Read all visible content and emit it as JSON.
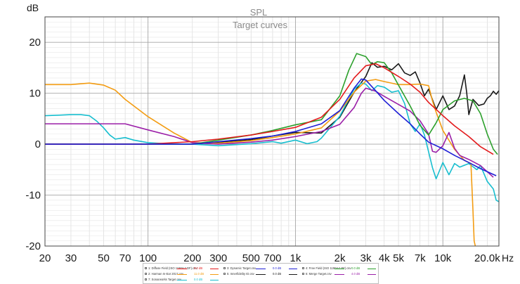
{
  "chart_data": {
    "type": "line",
    "title": "SPL",
    "subtitle": "Target curves",
    "ylabel": "dB",
    "xlabel": "Hz",
    "xscale": "log",
    "xlim": [
      20,
      24000
    ],
    "ylim": [
      -20,
      25
    ],
    "yticks": [
      -20,
      -10,
      0,
      10,
      20
    ],
    "ytick_labels": [
      "-20",
      "-10",
      "0",
      "10",
      "20"
    ],
    "xticks": [
      20,
      30,
      50,
      70,
      100,
      200,
      300,
      500,
      700,
      1000,
      2000,
      3000,
      4000,
      5000,
      7000,
      10000,
      20000
    ],
    "xtick_labels": [
      "20",
      "30",
      "50",
      "70",
      "100",
      "200",
      "300",
      "500",
      "700",
      "1k",
      "2k",
      "3k",
      "4k",
      "5k",
      "7k",
      "10k",
      "20.0k"
    ],
    "grid": true,
    "series": [
      {
        "name": "Diffuse Field (ISO 11904-2 DF).csv",
        "color": "#e31a1c",
        "offset": "0.0 dB",
        "points": [
          [
            20,
            0
          ],
          [
            100,
            0
          ],
          [
            200,
            0.5
          ],
          [
            300,
            1.0
          ],
          [
            500,
            1.8
          ],
          [
            700,
            2.5
          ],
          [
            1000,
            3.3
          ],
          [
            1500,
            5.3
          ],
          [
            2000,
            8.8
          ],
          [
            2500,
            13.0
          ],
          [
            3000,
            15.4
          ],
          [
            3500,
            15.8
          ],
          [
            4000,
            15.0
          ],
          [
            5000,
            13.3
          ],
          [
            6000,
            11.8
          ],
          [
            7000,
            10.2
          ],
          [
            8000,
            8.2
          ],
          [
            10000,
            5.6
          ],
          [
            12000,
            3.6
          ],
          [
            15000,
            1.5
          ],
          [
            18000,
            -0.5
          ],
          [
            22000,
            -2.0
          ]
        ]
      },
      {
        "name": "Harman In-Ear 2017.csv",
        "color": "#f39c12",
        "offset": "11.0 dB",
        "points": [
          [
            20,
            11.7
          ],
          [
            30,
            11.7
          ],
          [
            40,
            12.0
          ],
          [
            50,
            11.6
          ],
          [
            60,
            10.6
          ],
          [
            70,
            8.8
          ],
          [
            100,
            5.4
          ],
          [
            150,
            2.2
          ],
          [
            200,
            0.3
          ],
          [
            300,
            0.2
          ],
          [
            500,
            0.7
          ],
          [
            700,
            1.3
          ],
          [
            1000,
            2.0
          ],
          [
            1500,
            3.2
          ],
          [
            2000,
            6.5
          ],
          [
            2500,
            10.2
          ],
          [
            3000,
            12.4
          ],
          [
            3500,
            12.7
          ],
          [
            4000,
            12.3
          ],
          [
            5000,
            11.7
          ],
          [
            6000,
            11.7
          ],
          [
            7000,
            11.8
          ],
          [
            8000,
            11.5
          ],
          [
            8500,
            8.5
          ],
          [
            9000,
            6.3
          ],
          [
            10000,
            2.7
          ],
          [
            12000,
            -1.0
          ],
          [
            14000,
            -3.2
          ],
          [
            15500,
            -3.8
          ],
          [
            16000,
            -13.0
          ],
          [
            16300,
            -19.0
          ],
          [
            16600,
            -20
          ]
        ]
      },
      {
        "name": "Dynamic Target.csv",
        "color": "#1f1fd6",
        "offset": "0.0 dB",
        "points": [
          [
            20,
            0
          ],
          [
            200,
            0
          ],
          [
            300,
            0.5
          ],
          [
            500,
            1.1
          ],
          [
            700,
            1.6
          ],
          [
            1000,
            2.5
          ],
          [
            1500,
            4.0
          ],
          [
            2000,
            6.6
          ],
          [
            2500,
            11.0
          ],
          [
            2800,
            12.8
          ],
          [
            3000,
            12.6
          ],
          [
            3500,
            10.5
          ],
          [
            4000,
            8.6
          ],
          [
            5000,
            6.0
          ],
          [
            6000,
            4.0
          ],
          [
            7000,
            2.0
          ],
          [
            8000,
            0.4
          ],
          [
            10000,
            -0.9
          ],
          [
            12000,
            -2.2
          ],
          [
            15000,
            -3.6
          ],
          [
            18000,
            -4.8
          ],
          [
            23000,
            -6.2
          ]
        ]
      },
      {
        "name": "Free Field (ISO 11904-2 FF).csv",
        "color": "#2ca02c",
        "offset": "0.0 dB",
        "points": [
          [
            20,
            0
          ],
          [
            200,
            0
          ],
          [
            300,
            0.8
          ],
          [
            500,
            1.8
          ],
          [
            700,
            2.7
          ],
          [
            1000,
            3.8
          ],
          [
            1500,
            4.8
          ],
          [
            2000,
            9.5
          ],
          [
            2300,
            14.5
          ],
          [
            2600,
            17.8
          ],
          [
            3000,
            17.2
          ],
          [
            3300,
            15.6
          ],
          [
            3600,
            16.2
          ],
          [
            4000,
            16.0
          ],
          [
            4500,
            14.0
          ],
          [
            5000,
            11.6
          ],
          [
            6000,
            7.5
          ],
          [
            7000,
            3.7
          ],
          [
            8000,
            1.8
          ],
          [
            9000,
            4.2
          ],
          [
            10000,
            6.8
          ],
          [
            12000,
            8.5
          ],
          [
            14000,
            9.0
          ],
          [
            16000,
            8.5
          ],
          [
            18000,
            6.0
          ],
          [
            20000,
            2.0
          ],
          [
            22000,
            -1.0
          ],
          [
            23500,
            -2.0
          ]
        ]
      },
      {
        "name": "Innerfidelity ID.csv",
        "color": "#1a1a1a",
        "offset": "0.0 dB",
        "points": [
          [
            20,
            0
          ],
          [
            200,
            0
          ],
          [
            300,
            0.4
          ],
          [
            500,
            0.9
          ],
          [
            700,
            1.6
          ],
          [
            1000,
            2.3
          ],
          [
            1500,
            2.2
          ],
          [
            2000,
            5.3
          ],
          [
            2500,
            10.2
          ],
          [
            3000,
            13.3
          ],
          [
            3300,
            16.0
          ],
          [
            3600,
            15.1
          ],
          [
            4000,
            15.3
          ],
          [
            4500,
            14.6
          ],
          [
            5000,
            15.8
          ],
          [
            5500,
            14.0
          ],
          [
            6000,
            13.5
          ],
          [
            6500,
            14.2
          ],
          [
            7000,
            12.0
          ],
          [
            7500,
            9.5
          ],
          [
            8000,
            10.8
          ],
          [
            9000,
            6.8
          ],
          [
            10000,
            9.5
          ],
          [
            11000,
            6.8
          ],
          [
            12000,
            7.5
          ],
          [
            13000,
            9.5
          ],
          [
            14000,
            13.6
          ],
          [
            14500,
            10.2
          ],
          [
            15000,
            5.8
          ],
          [
            16000,
            8.8
          ],
          [
            17500,
            7.6
          ],
          [
            19000,
            7.9
          ],
          [
            20000,
            9.0
          ],
          [
            21000,
            9.5
          ],
          [
            22000,
            10.4
          ],
          [
            23000,
            9.8
          ],
          [
            24000,
            10.5
          ]
        ]
      },
      {
        "name": "Merge Target.csv",
        "color": "#9b1fa8",
        "offset": "4.0 dB",
        "points": [
          [
            20,
            4.0
          ],
          [
            30,
            4.0
          ],
          [
            50,
            4.0
          ],
          [
            70,
            4.0
          ],
          [
            100,
            2.8
          ],
          [
            150,
            1.5
          ],
          [
            200,
            0.3
          ],
          [
            300,
            0
          ],
          [
            500,
            0.4
          ],
          [
            700,
            0.8
          ],
          [
            1000,
            1.5
          ],
          [
            1500,
            2.5
          ],
          [
            2000,
            3.9
          ],
          [
            2500,
            7.2
          ],
          [
            2800,
            10.0
          ],
          [
            3000,
            11.0
          ],
          [
            3500,
            10.4
          ],
          [
            4000,
            9.4
          ],
          [
            5000,
            7.8
          ],
          [
            6000,
            6.5
          ],
          [
            7000,
            4.6
          ],
          [
            8000,
            2.0
          ],
          [
            8500,
            -1.4
          ],
          [
            9000,
            -1.6
          ],
          [
            10000,
            -0.3
          ],
          [
            11000,
            2.3
          ],
          [
            12000,
            -0.8
          ],
          [
            13000,
            -2.2
          ],
          [
            15000,
            -3.0
          ],
          [
            18000,
            -4.2
          ],
          [
            22000,
            -6.5
          ]
        ]
      },
      {
        "name": "Sonarworks Target.csv",
        "color": "#17becf",
        "offset": "0.0 dB",
        "points": [
          [
            20,
            5.6
          ],
          [
            25,
            5.7
          ],
          [
            30,
            5.8
          ],
          [
            35,
            5.8
          ],
          [
            40,
            5.6
          ],
          [
            45,
            4.5
          ],
          [
            50,
            3.2
          ],
          [
            55,
            1.8
          ],
          [
            60,
            1.0
          ],
          [
            70,
            1.3
          ],
          [
            80,
            0.8
          ],
          [
            100,
            0.3
          ],
          [
            150,
            0
          ],
          [
            200,
            0
          ],
          [
            300,
            -0.3
          ],
          [
            500,
            0.1
          ],
          [
            700,
            0.5
          ],
          [
            800,
            0.2
          ],
          [
            1000,
            0.8
          ],
          [
            1200,
            0.1
          ],
          [
            1400,
            0.5
          ],
          [
            1500,
            1.2
          ],
          [
            2000,
            5.5
          ],
          [
            2500,
            10.8
          ],
          [
            2800,
            12.0
          ],
          [
            3000,
            11.8
          ],
          [
            3300,
            10.5
          ],
          [
            3600,
            11.5
          ],
          [
            4000,
            11.2
          ],
          [
            4500,
            10.2
          ],
          [
            5000,
            10.5
          ],
          [
            5500,
            8.0
          ],
          [
            6000,
            4.0
          ],
          [
            6500,
            2.5
          ],
          [
            7000,
            4.0
          ],
          [
            7500,
            1.8
          ],
          [
            8000,
            -1.5
          ],
          [
            8500,
            -4.6
          ],
          [
            9000,
            -6.8
          ],
          [
            10000,
            -3.6
          ],
          [
            11000,
            -6.0
          ],
          [
            12000,
            -3.8
          ],
          [
            13000,
            -4.5
          ],
          [
            15000,
            -3.8
          ],
          [
            17000,
            -5.0
          ],
          [
            18000,
            -4.2
          ],
          [
            20000,
            -7.3
          ],
          [
            22000,
            -8.8
          ],
          [
            23000,
            -11.0
          ],
          [
            24000,
            -11.3
          ]
        ]
      }
    ]
  }
}
